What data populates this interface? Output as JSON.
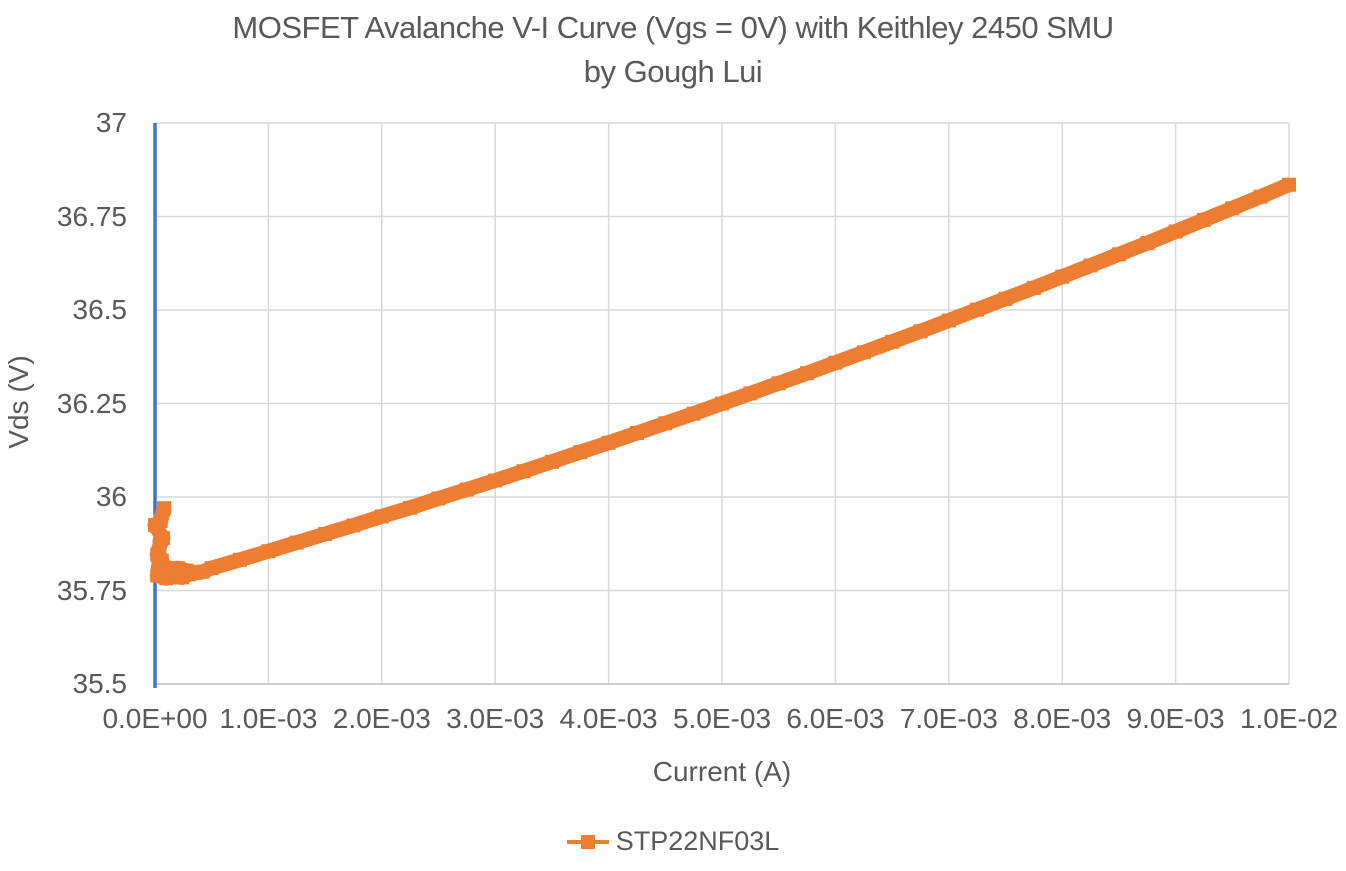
{
  "title": {
    "line1": "MOSFET Avalanche V-I Curve (Vgs = 0V) with Keithley 2450 SMU",
    "line2": "by Gough Lui"
  },
  "chart_data": {
    "type": "line",
    "title": "MOSFET Avalanche V-I Curve (Vgs = 0V) with Keithley 2450 SMU",
    "subtitle": "by Gough Lui",
    "xlabel": "Current (A)",
    "ylabel": "Vds (V)",
    "xlim": [
      0,
      0.01
    ],
    "ylim": [
      35.5,
      37
    ],
    "grid": true,
    "legend_position": "bottom",
    "x_tick_values": [
      0,
      0.001,
      0.002,
      0.003,
      0.004,
      0.005,
      0.006,
      0.007,
      0.008,
      0.009,
      0.01
    ],
    "x_tick_labels": [
      "0.0E+00",
      "1.0E-03",
      "2.0E-03",
      "3.0E-03",
      "4.0E-03",
      "5.0E-03",
      "6.0E-03",
      "7.0E-03",
      "8.0E-03",
      "9.0E-03",
      "1.0E-02"
    ],
    "y_tick_values": [
      35.5,
      35.75,
      36,
      36.25,
      36.5,
      36.75,
      37
    ],
    "y_tick_labels": [
      "35.5",
      "35.75",
      "36",
      "36.25",
      "36.5",
      "36.75",
      "37"
    ],
    "colors": {
      "series": "#ED7D31",
      "y_axis_line": "#4472C4",
      "x_axis_line": "#BFBFBF",
      "gridline": "#D9D9D9",
      "text": "#595959",
      "background": "#FFFFFF"
    },
    "series": [
      {
        "name": "STP22NF03L",
        "color": "#ED7D31",
        "marker": "square",
        "points": [
          [
            8e-05,
            35.97
          ],
          [
            5e-05,
            35.936
          ],
          [
            0.0,
            35.925
          ],
          [
            7e-05,
            35.89
          ],
          [
            4e-05,
            35.868
          ],
          [
            2e-05,
            35.846
          ],
          [
            6e-05,
            35.83
          ],
          [
            3e-05,
            35.812
          ],
          [
            8e-05,
            35.798
          ],
          [
            2e-05,
            35.79
          ],
          [
            0.0001,
            35.783
          ],
          [
            0.00016,
            35.788
          ],
          [
            6e-05,
            35.8
          ],
          [
            0.00013,
            35.81
          ],
          [
            0.0002,
            35.798
          ],
          [
            0.0001,
            35.79
          ],
          [
            0.00024,
            35.785
          ],
          [
            0.0003,
            35.793
          ],
          [
            0.0002,
            35.81
          ],
          [
            0.00028,
            35.803
          ],
          [
            0.00035,
            35.797
          ],
          [
            0.00042,
            35.8
          ],
          [
            0.0005,
            35.81
          ],
          [
            0.00075,
            35.832
          ],
          [
            0.001,
            35.855
          ],
          [
            0.00125,
            35.878
          ],
          [
            0.0015,
            35.901
          ],
          [
            0.00175,
            35.924
          ],
          [
            0.002,
            35.948
          ],
          [
            0.00225,
            35.971
          ],
          [
            0.0025,
            35.996
          ],
          [
            0.00275,
            36.02
          ],
          [
            0.003,
            36.044
          ],
          [
            0.00325,
            36.069
          ],
          [
            0.0035,
            36.094
          ],
          [
            0.00375,
            36.12
          ],
          [
            0.004,
            36.145
          ],
          [
            0.00425,
            36.171
          ],
          [
            0.0045,
            36.197
          ],
          [
            0.00475,
            36.223
          ],
          [
            0.005,
            36.25
          ],
          [
            0.00525,
            36.277
          ],
          [
            0.0055,
            36.304
          ],
          [
            0.00575,
            36.331
          ],
          [
            0.006,
            36.359
          ],
          [
            0.00625,
            36.387
          ],
          [
            0.0065,
            36.415
          ],
          [
            0.00675,
            36.443
          ],
          [
            0.007,
            36.472
          ],
          [
            0.00725,
            36.501
          ],
          [
            0.0075,
            36.53
          ],
          [
            0.00775,
            36.559
          ],
          [
            0.008,
            36.589
          ],
          [
            0.00825,
            36.619
          ],
          [
            0.0085,
            36.649
          ],
          [
            0.00875,
            36.679
          ],
          [
            0.009,
            36.71
          ],
          [
            0.00925,
            36.741
          ],
          [
            0.0095,
            36.772
          ],
          [
            0.00975,
            36.803
          ],
          [
            0.01,
            36.835
          ]
        ]
      }
    ]
  }
}
